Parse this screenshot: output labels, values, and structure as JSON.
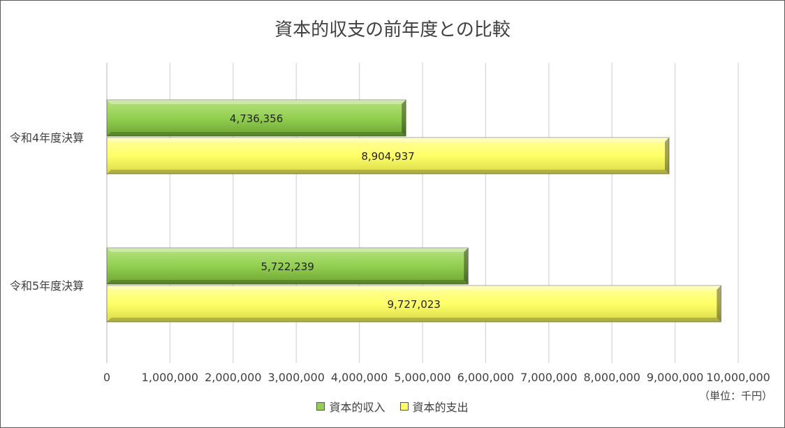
{
  "chart_data": {
    "type": "bar",
    "orientation": "horizontal",
    "title": "資本的収支の前年度との比較",
    "categories": [
      "令和4年度決算",
      "令和5年度決算"
    ],
    "series": [
      {
        "name": "資本的収入",
        "values": [
          4736356,
          5722239
        ],
        "labels": [
          "4,736,356",
          "5,722,239"
        ],
        "color": "#92D050"
      },
      {
        "name": "資本的支出",
        "values": [
          8904937,
          9727023
        ],
        "labels": [
          "8,904,937",
          "9,727,023"
        ],
        "color": "#FFFF66"
      }
    ],
    "xlim": [
      0,
      10000000
    ],
    "xticks": [
      0,
      1000000,
      2000000,
      3000000,
      4000000,
      5000000,
      6000000,
      7000000,
      8000000,
      9000000,
      10000000
    ],
    "xtick_labels": [
      "0",
      "1,000,000",
      "2,000,000",
      "3,000,000",
      "4,000,000",
      "5,000,000",
      "6,000,000",
      "7,000,000",
      "8,000,000",
      "9,000,000",
      "10,000,000"
    ],
    "unit_label": "（単位：千円）",
    "grid": true,
    "legend": "bottom"
  }
}
